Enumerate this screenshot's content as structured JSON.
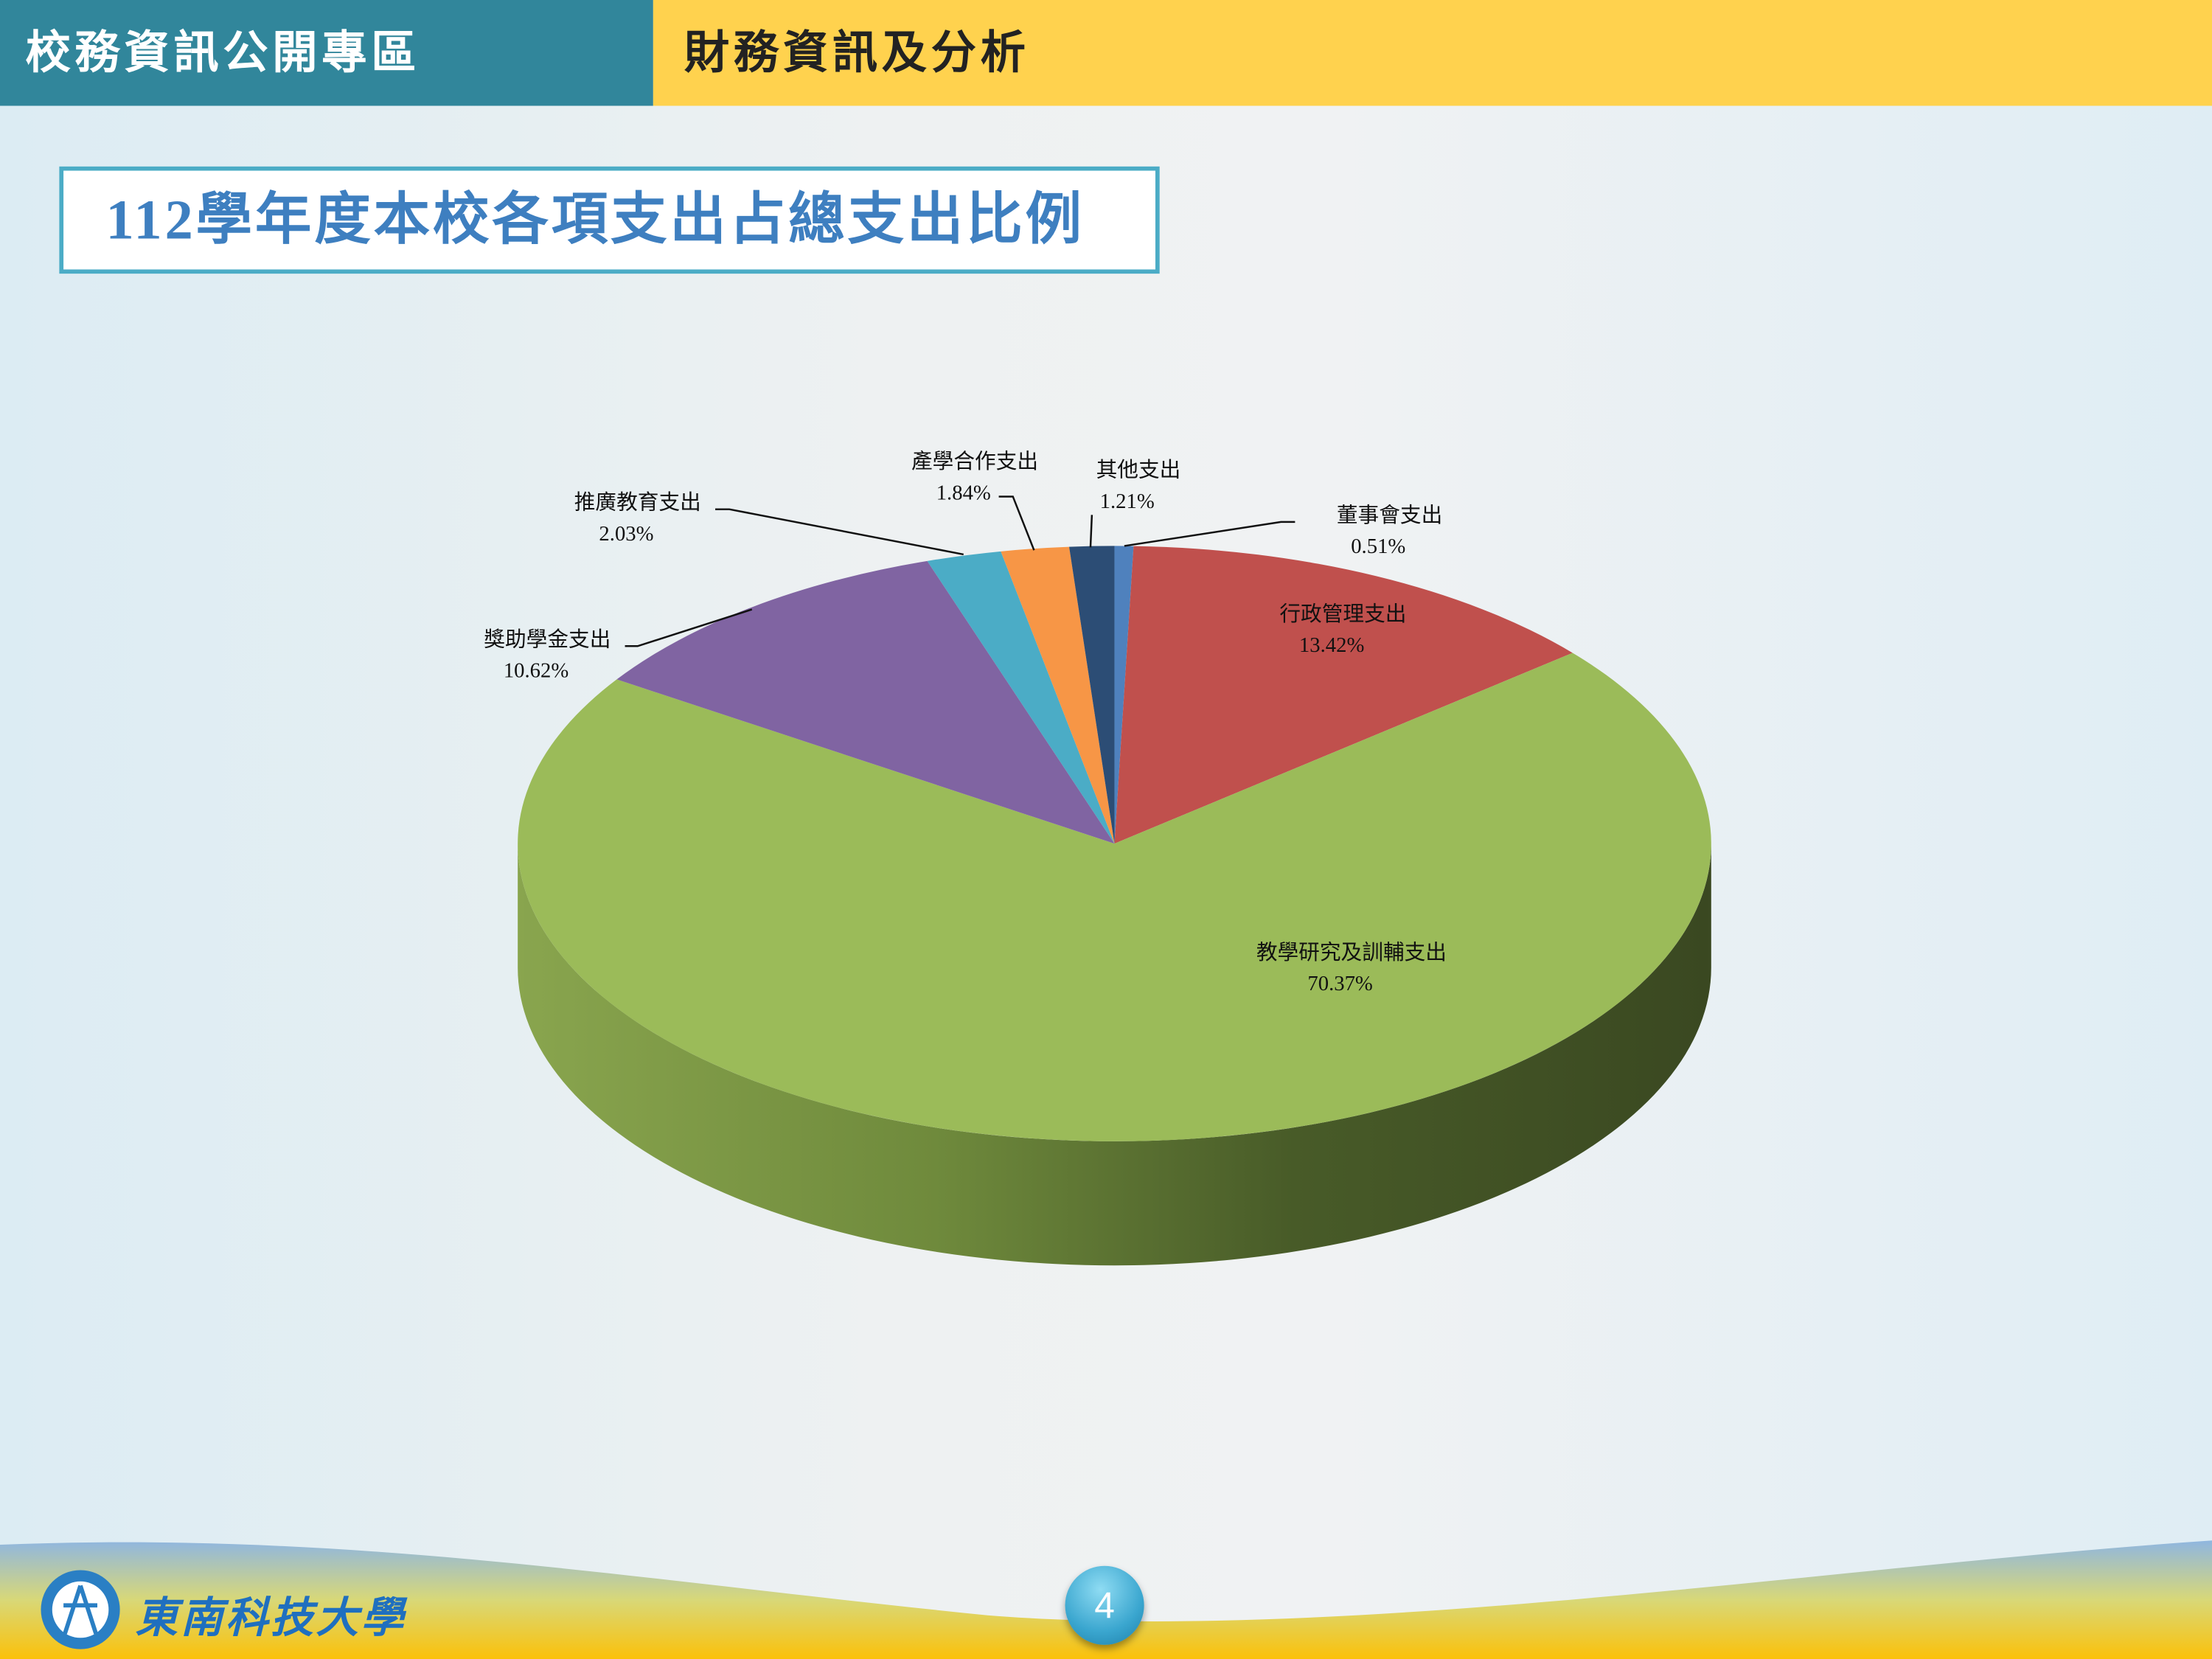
{
  "header": {
    "section": "校務資訊公開專區",
    "topic": "財務資訊及分析"
  },
  "slide_title": "112學年度本校各項支出占總支出比例",
  "footer": {
    "school_name": "東南科技大學",
    "page_number": "4"
  },
  "chart_data": {
    "type": "pie",
    "style": "3d",
    "title": "112學年度本校各項支出占總支出比例",
    "unit": "%",
    "slices": [
      {
        "label": "董事會支出",
        "value": 0.51,
        "display": "0.51%",
        "color": "#4f81bd"
      },
      {
        "label": "行政管理支出",
        "value": 13.42,
        "display": "13.42%",
        "color": "#c0504d"
      },
      {
        "label": "教學研究及訓輔支出",
        "value": 70.37,
        "display": "70.37%",
        "color": "#9bbb59"
      },
      {
        "label": "獎助學金支出",
        "value": 10.62,
        "display": "10.62%",
        "color": "#8064a2"
      },
      {
        "label": "推廣教育支出",
        "value": 2.03,
        "display": "2.03%",
        "color": "#4bacc6"
      },
      {
        "label": "產學合作支出",
        "value": 1.84,
        "display": "1.84%",
        "color": "#f79646"
      },
      {
        "label": "其他支出",
        "value": 1.21,
        "display": "1.21%",
        "color": "#2c4d75"
      }
    ]
  }
}
